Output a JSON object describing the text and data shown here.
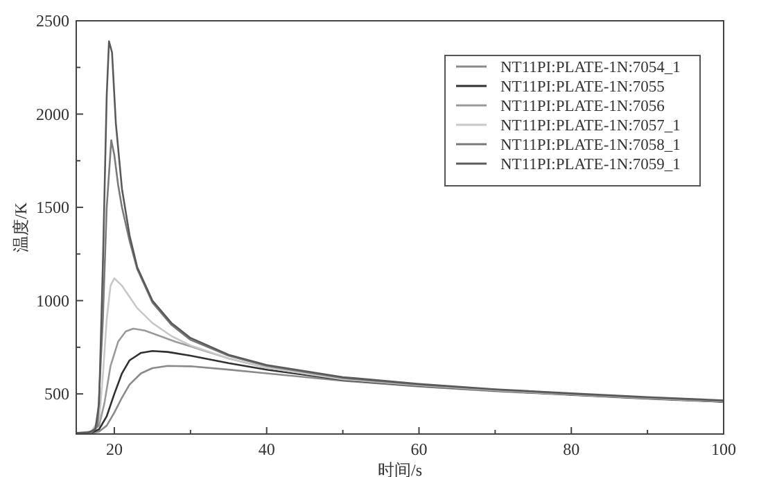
{
  "chart_data": {
    "type": "line",
    "xlabel": "时间/s",
    "ylabel": "温度/K",
    "xlim": [
      15,
      100
    ],
    "ylim": [
      285,
      2500
    ],
    "xticks": [
      20,
      {
        "value": 30,
        "label": null
      },
      40,
      {
        "value": 50,
        "label": null
      },
      60,
      {
        "value": 70,
        "label": null
      },
      80,
      {
        "value": 90,
        "label": null
      },
      100
    ],
    "yticks": [
      500,
      {
        "value": 750,
        "label": null
      },
      1000,
      {
        "value": 1250,
        "label": null
      },
      1500,
      {
        "value": 1750,
        "label": null
      },
      2000,
      {
        "value": 2250,
        "label": null
      },
      2500
    ],
    "grid": false,
    "legend": "top right",
    "marker": "none",
    "line_style": "solid",
    "series": [
      {
        "name": "NT11PI:PLATE-1N:7054_1",
        "color": "#8a8a8a",
        "x": [
          15,
          17,
          18,
          19,
          20,
          21,
          22,
          23.5,
          25,
          27,
          30,
          35,
          40,
          50,
          60,
          70,
          80,
          90,
          100
        ],
        "values": [
          288,
          290,
          298,
          330,
          400,
          480,
          550,
          610,
          638,
          650,
          648,
          630,
          610,
          570,
          540,
          515,
          494,
          474,
          457
        ]
      },
      {
        "name": "NT11PI:PLATE-1N:7055",
        "color": "#303030",
        "x": [
          15,
          17,
          18,
          19,
          20,
          21,
          22,
          23.5,
          25,
          27,
          30,
          35,
          40,
          50,
          60,
          70,
          80,
          90,
          100
        ],
        "values": [
          288,
          292,
          310,
          380,
          500,
          610,
          680,
          720,
          730,
          725,
          705,
          665,
          630,
          575,
          543,
          517,
          496,
          476,
          458
        ]
      },
      {
        "name": "NT11PI:PLATE-1N:7056",
        "color": "#9a9a9a",
        "x": [
          15,
          17,
          18,
          18.7,
          19.5,
          20.5,
          21.5,
          22.5,
          24,
          26,
          28,
          30,
          35,
          40,
          50,
          60,
          70,
          80,
          90,
          100
        ],
        "values": [
          290,
          295,
          330,
          450,
          650,
          780,
          835,
          850,
          840,
          810,
          780,
          755,
          690,
          640,
          578,
          545,
          518,
          497,
          477,
          460
        ]
      },
      {
        "name": "NT11PI:PLATE-1N:7057_1",
        "color": "#c8c8c8",
        "x": [
          15,
          17,
          18,
          18.5,
          19,
          19.5,
          20,
          21,
          22,
          23,
          25,
          27.5,
          30,
          35,
          40,
          50,
          60,
          70,
          80,
          90,
          100
        ],
        "values": [
          290,
          300,
          360,
          600,
          900,
          1080,
          1120,
          1080,
          1020,
          960,
          880,
          810,
          760,
          690,
          640,
          580,
          547,
          520,
          498,
          478,
          460
        ]
      },
      {
        "name": "NT11PI:PLATE-1N:7058_1",
        "color": "#7a7a7a",
        "x": [
          15,
          17,
          17.8,
          18.5,
          19,
          19.6,
          20,
          20.5,
          21,
          22,
          23,
          25,
          27.5,
          30,
          35,
          40,
          50,
          60,
          70,
          80,
          90,
          100
        ],
        "values": [
          290,
          295,
          330,
          900,
          1500,
          1860,
          1780,
          1620,
          1500,
          1320,
          1170,
          990,
          870,
          790,
          705,
          650,
          585,
          550,
          523,
          500,
          480,
          462
        ]
      },
      {
        "name": "NT11PI:PLATE-1N:7059_1",
        "color": "#5a5a5a",
        "x": [
          15,
          16.5,
          17.5,
          18,
          18.5,
          19,
          19.3,
          19.7,
          20.2,
          21,
          22,
          23,
          25,
          27.5,
          30,
          35,
          40,
          50,
          60,
          70,
          80,
          90,
          100
        ],
        "values": [
          290,
          292,
          310,
          450,
          1200,
          2100,
          2390,
          2330,
          1950,
          1600,
          1350,
          1180,
          1000,
          880,
          800,
          710,
          655,
          590,
          553,
          525,
          503,
          483,
          465
        ]
      }
    ]
  }
}
